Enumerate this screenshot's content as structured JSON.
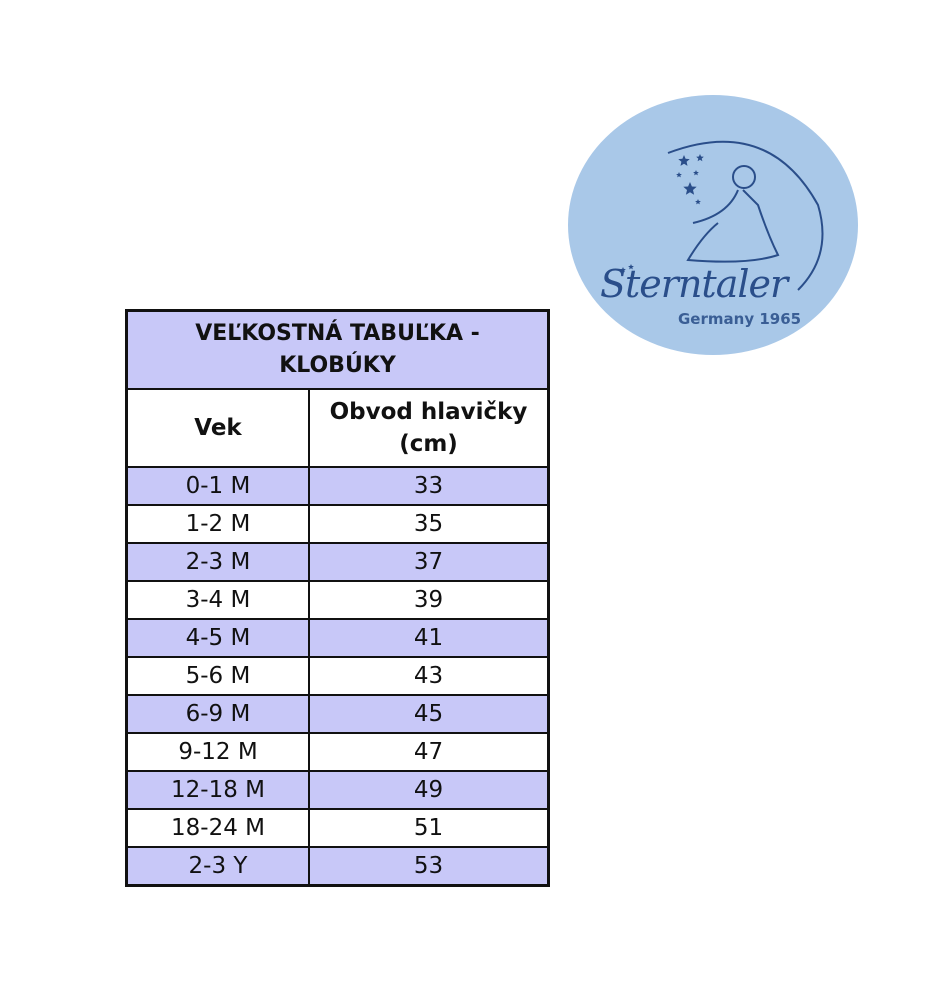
{
  "logo": {
    "brand": "Sterntaler",
    "tagline": "Germany 1965",
    "color": "#a9c8e8",
    "ink": "#2a4e8a"
  },
  "table": {
    "title": "VEĽKOSTNÁ TABUĽKA - KLOBÚKY",
    "headers": [
      "Vek",
      "Obvod hlavičky (cm)"
    ],
    "rows": [
      [
        "0-1 M",
        "33"
      ],
      [
        "1-2 M",
        "35"
      ],
      [
        "2-3 M",
        "37"
      ],
      [
        "3-4 M",
        "39"
      ],
      [
        "4-5 M",
        "41"
      ],
      [
        "5-6 M",
        "43"
      ],
      [
        "6-9 M",
        "45"
      ],
      [
        "9-12 M",
        "47"
      ],
      [
        "12-18 M",
        "49"
      ],
      [
        "18-24 M",
        "51"
      ],
      [
        "2-3 Y",
        "53"
      ]
    ],
    "row_colors": [
      "#c8c8f8",
      "#ffffff"
    ]
  }
}
